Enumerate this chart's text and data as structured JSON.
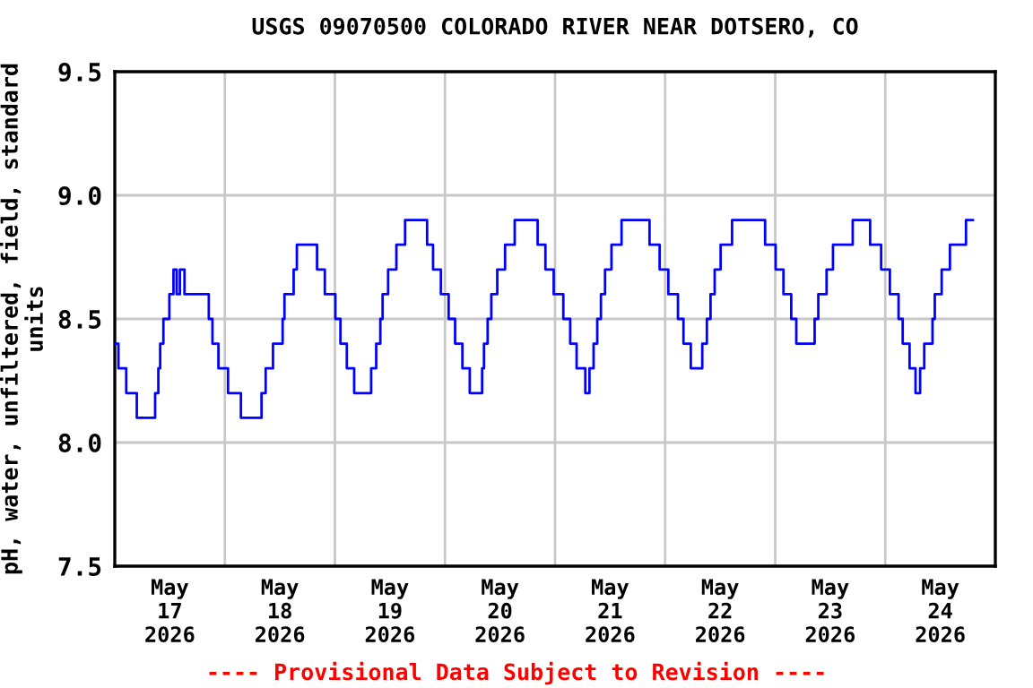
{
  "chart_data": {
    "type": "step",
    "title": "USGS 09070500 COLORADO RIVER NEAR DOTSERO, CO",
    "ylabel": "pH, water, unfiltered, field, standard\nunits",
    "annotations": [
      "---- Provisional Data Subject to Revision ----"
    ],
    "xlim": [
      "2026-05-17T00:00",
      "2026-05-25T00:00"
    ],
    "xticks": [
      {
        "value": "2026-05-17T12:00",
        "label": "May\n17\n2026"
      },
      {
        "value": "2026-05-18T12:00",
        "label": "May\n18\n2026"
      },
      {
        "value": "2026-05-19T12:00",
        "label": "May\n19\n2026"
      },
      {
        "value": "2026-05-20T12:00",
        "label": "May\n20\n2026"
      },
      {
        "value": "2026-05-21T12:00",
        "label": "May\n21\n2026"
      },
      {
        "value": "2026-05-22T12:00",
        "label": "May\n22\n2026"
      },
      {
        "value": "2026-05-23T12:00",
        "label": "May\n23\n2026"
      },
      {
        "value": "2026-05-24T12:00",
        "label": "May\n24\n2026"
      }
    ],
    "ylim": [
      7.5,
      9.5
    ],
    "yticks": [
      {
        "value": 7.5,
        "label": "7.5"
      },
      {
        "value": 8,
        "label": "8.0"
      },
      {
        "value": 8.5,
        "label": "8.5"
      },
      {
        "value": 9,
        "label": "9.0"
      },
      {
        "value": 9.5,
        "label": "9.5"
      }
    ],
    "grid": true,
    "legend": false,
    "series": [
      {
        "color": "#0000ff",
        "x": [
          "2026-05-17T00:00",
          "2026-05-17T00:48",
          "2026-05-17T02:30",
          "2026-05-17T04:48",
          "2026-05-17T08:48",
          "2026-05-17T09:30",
          "2026-05-17T09:54",
          "2026-05-17T10:36",
          "2026-05-17T11:54",
          "2026-05-17T12:48",
          "2026-05-17T13:30",
          "2026-05-17T14:12",
          "2026-05-17T15:12",
          "2026-05-17T20:30",
          "2026-05-17T21:18",
          "2026-05-17T22:36",
          "2026-05-18T00:42",
          "2026-05-18T03:30",
          "2026-05-18T08:00",
          "2026-05-18T08:54",
          "2026-05-18T10:30",
          "2026-05-18T12:36",
          "2026-05-18T13:00",
          "2026-05-18T15:00",
          "2026-05-18T15:42",
          "2026-05-18T20:06",
          "2026-05-18T21:48",
          "2026-05-19T00:06",
          "2026-05-19T01:12",
          "2026-05-19T02:36",
          "2026-05-19T04:12",
          "2026-05-19T07:54",
          "2026-05-19T09:00",
          "2026-05-19T09:54",
          "2026-05-19T10:24",
          "2026-05-19T11:36",
          "2026-05-19T13:24",
          "2026-05-19T15:18",
          "2026-05-19T20:06",
          "2026-05-19T21:24",
          "2026-05-19T23:06",
          "2026-05-20T00:48",
          "2026-05-20T02:12",
          "2026-05-20T03:48",
          "2026-05-20T05:24",
          "2026-05-20T08:06",
          "2026-05-20T08:30",
          "2026-05-20T09:18",
          "2026-05-20T10:06",
          "2026-05-20T11:24",
          "2026-05-20T13:06",
          "2026-05-20T15:12",
          "2026-05-20T20:12",
          "2026-05-20T21:54",
          "2026-05-20T23:42",
          "2026-05-21T01:48",
          "2026-05-21T03:18",
          "2026-05-21T04:42",
          "2026-05-21T06:36",
          "2026-05-21T07:30",
          "2026-05-21T08:24",
          "2026-05-21T09:12",
          "2026-05-21T10:00",
          "2026-05-21T10:54",
          "2026-05-21T12:18",
          "2026-05-21T14:30",
          "2026-05-21T20:36",
          "2026-05-21T22:48",
          "2026-05-22T00:42",
          "2026-05-22T02:48",
          "2026-05-22T04:00",
          "2026-05-22T05:36",
          "2026-05-22T08:06",
          "2026-05-22T09:06",
          "2026-05-22T09:54",
          "2026-05-22T10:48",
          "2026-05-22T12:06",
          "2026-05-22T14:36",
          "2026-05-22T21:48",
          "2026-05-23T00:06",
          "2026-05-23T01:48",
          "2026-05-23T03:30",
          "2026-05-23T04:36",
          "2026-05-23T08:36",
          "2026-05-23T09:24",
          "2026-05-23T11:12",
          "2026-05-23T12:36",
          "2026-05-23T16:54",
          "2026-05-23T20:42",
          "2026-05-23T23:06",
          "2026-05-24T01:00",
          "2026-05-24T02:54",
          "2026-05-24T03:48",
          "2026-05-24T05:18",
          "2026-05-24T06:36",
          "2026-05-24T07:36",
          "2026-05-24T08:30",
          "2026-05-24T10:18",
          "2026-05-24T10:48",
          "2026-05-24T12:18",
          "2026-05-24T14:06",
          "2026-05-24T17:36",
          "2026-05-24T19:06"
        ],
        "values": [
          8.4,
          8.3,
          8.2,
          8.1,
          8.2,
          8.3,
          8.4,
          8.5,
          8.6,
          8.7,
          8.6,
          8.7,
          8.6,
          8.5,
          8.4,
          8.3,
          8.2,
          8.1,
          8.2,
          8.3,
          8.4,
          8.5,
          8.6,
          8.7,
          8.8,
          8.7,
          8.6,
          8.5,
          8.4,
          8.3,
          8.2,
          8.3,
          8.4,
          8.5,
          8.6,
          8.7,
          8.8,
          8.9,
          8.8,
          8.7,
          8.6,
          8.5,
          8.4,
          8.3,
          8.2,
          8.3,
          8.4,
          8.5,
          8.6,
          8.7,
          8.8,
          8.9,
          8.8,
          8.7,
          8.6,
          8.5,
          8.4,
          8.3,
          8.2,
          8.3,
          8.4,
          8.5,
          8.6,
          8.7,
          8.8,
          8.9,
          8.8,
          8.7,
          8.6,
          8.5,
          8.4,
          8.3,
          8.4,
          8.5,
          8.6,
          8.7,
          8.8,
          8.9,
          8.8,
          8.7,
          8.6,
          8.5,
          8.4,
          8.5,
          8.6,
          8.7,
          8.8,
          8.9,
          8.8,
          8.7,
          8.6,
          8.5,
          8.4,
          8.3,
          8.2,
          8.3,
          8.4,
          8.5,
          8.6,
          8.7,
          8.8,
          8.9,
          8.9
        ]
      }
    ]
  }
}
